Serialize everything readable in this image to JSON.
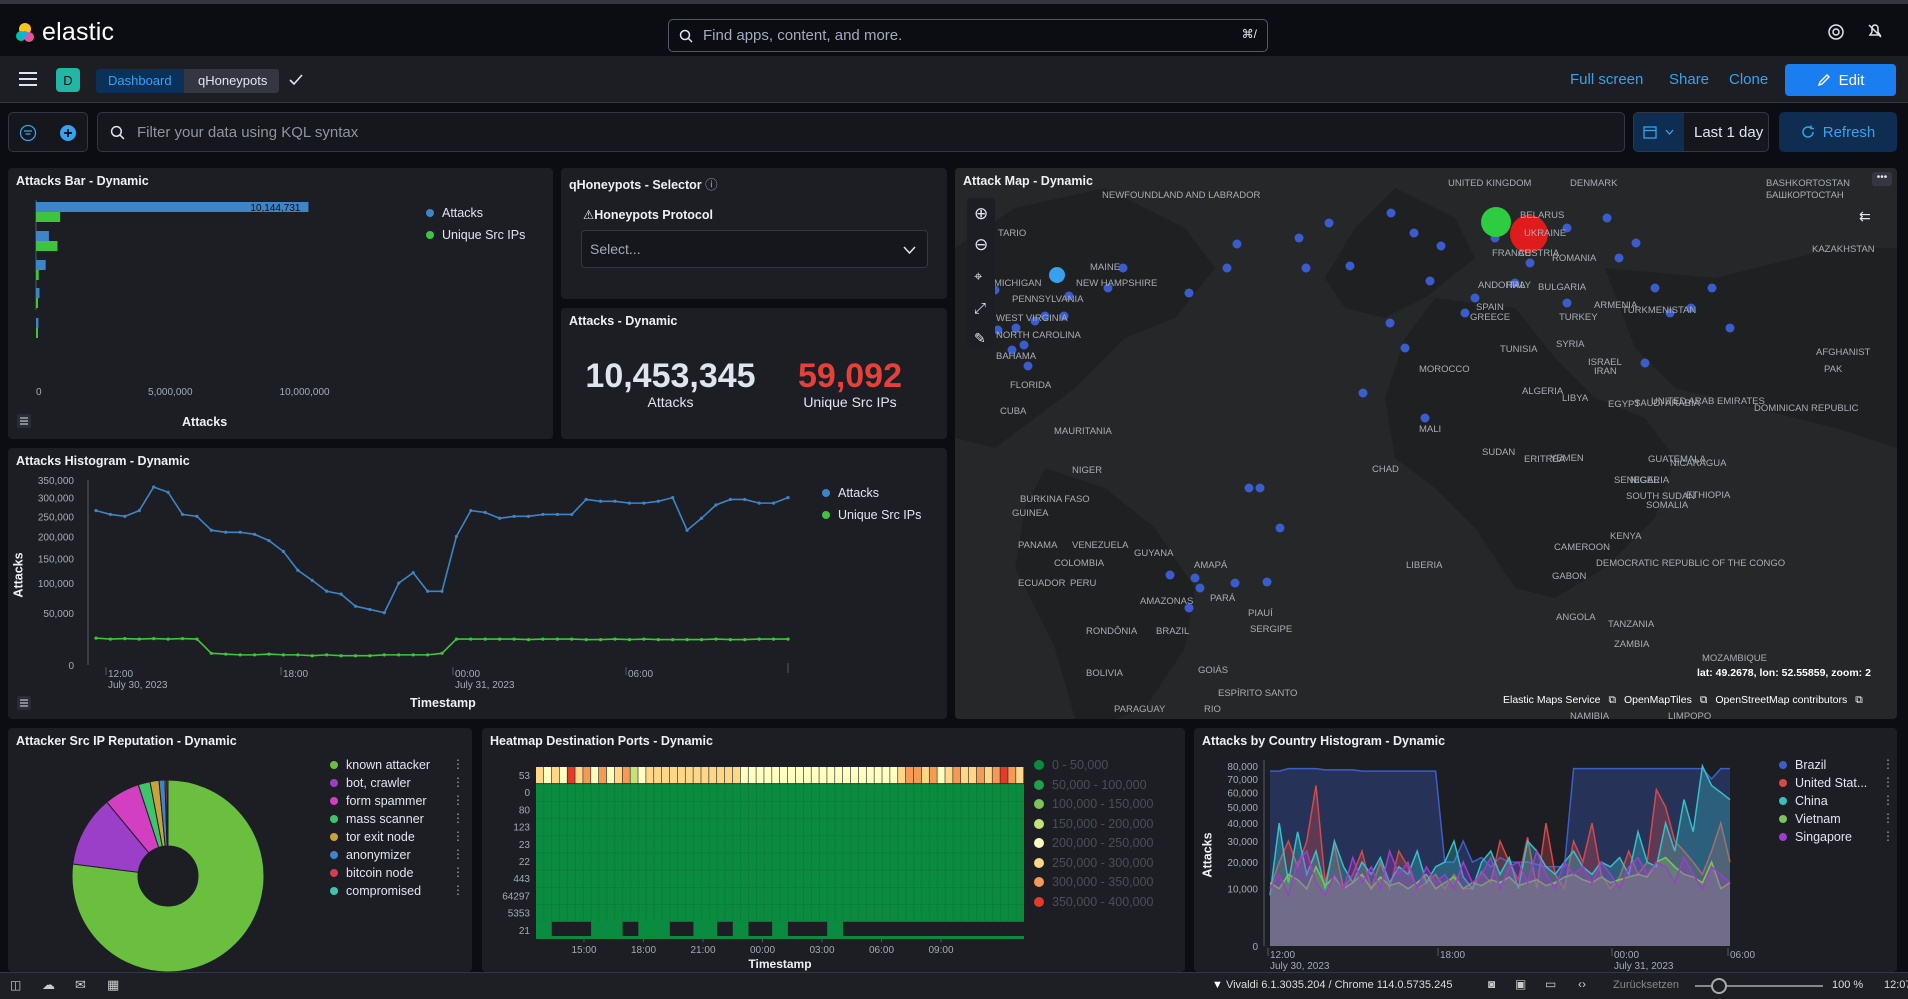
{
  "header": {
    "logo_text": "elastic",
    "search_placeholder": "Find apps, content, and more.",
    "search_shortcut": "⌘/"
  },
  "nav": {
    "space_initial": "D",
    "crumbs": [
      "Dashboard",
      "qHoneypots"
    ],
    "links": {
      "fullscreen": "Full screen",
      "share": "Share",
      "clone": "Clone",
      "edit": "Edit"
    }
  },
  "query": {
    "placeholder": "Filter your data using KQL syntax",
    "date_label": "Last 1 day",
    "refresh_label": "Refresh"
  },
  "panels": {
    "attacks_bar": {
      "title": "Attacks Bar - Dynamic",
      "xlabel": "Attacks",
      "bar_label": "10,144,731",
      "ticks": [
        "0",
        "5,000,000",
        "10,000,000"
      ],
      "legend": [
        "Attacks",
        "Unique Src IPs"
      ]
    },
    "selector": {
      "title": "qHoneypots - Selector",
      "label": "Honeypots Protocol",
      "placeholder": "Select..."
    },
    "metric": {
      "title": "Attacks - Dynamic",
      "attacks_value": "10,453,345",
      "attacks_label": "Attacks",
      "ips_value": "59,092",
      "ips_label": "Unique Src IPs"
    },
    "histogram": {
      "title": "Attacks Histogram - Dynamic",
      "ylabel": "Attacks",
      "xlabel": "Timestamp",
      "yticks": [
        "350,000",
        "300,000",
        "250,000",
        "200,000",
        "150,000",
        "100,000",
        "50,000",
        "0"
      ],
      "xticks": [
        "12:00",
        "18:00",
        "00:00",
        "06:00"
      ],
      "xdates": [
        "July 30, 2023",
        "July 31, 2023"
      ],
      "legend": [
        "Attacks",
        "Unique Src IPs"
      ]
    },
    "map": {
      "title": "Attack Map - Dynamic",
      "coords": "lat: 49.2678, lon: 52.55859, zoom: 2",
      "attribution": [
        "Elastic Maps Service",
        "OpenMapTiles",
        "OpenStreetMap contributors"
      ],
      "labels": [
        "UNITED KINGDOM",
        "DENMARK",
        "BELARUS",
        "BASHKORTOSTAN",
        "БАШКОРТОСТАН",
        "NEWFOUNDLAND AND LABRADOR",
        "UKRAINE",
        "KAZAKHSTAN",
        "FRANCE",
        "AUSTRIA",
        "ROMANIA",
        "TARIO",
        "MAINE",
        "NEW HAMPSHIRE",
        "MICHIGAN",
        "PENNSYLVANIA",
        "ANDORRA",
        "ITALY",
        "BULGARIA",
        "WEST VIRGINIA",
        "SPAIN",
        "GREECE",
        "TURKEY",
        "ARMENIA",
        "TURKMENISTAN",
        "NORTH CAROLINA",
        "TUNISIA",
        "SYRIA",
        "AFGHANIST",
        "ISRAEL",
        "IRAN",
        "MOROCCO",
        "BAHAMA",
        "FLORIDA",
        "ALGERIA",
        "LIBYA",
        "EGYPT",
        "SAUDI ARABIA",
        "UNITED ARAB EMIRATES",
        "PAK",
        "CUBA",
        "DOMINICAN REPUBLIC",
        "MAURITANIA",
        "NIGER",
        "MALI",
        "CHAD",
        "SUDAN",
        "ERITREA",
        "YEMEN",
        "GUATEMALA",
        "NICARAGUA",
        "SENEGAL",
        "BURKINA FASO",
        "GUINEA",
        "NIGERIA",
        "SOUTH SUDAN",
        "ETHIOPIA",
        "SOMALIA",
        "PANAMA",
        "VENEZUELA",
        "COLOMBIA",
        "GUYANA",
        "LIBERIA",
        "CAMEROON",
        "ECUADOR",
        "AMAPÁ",
        "KENYA",
        "DEMOCRATIC REPUBLIC OF THE CONGO",
        "GABON",
        "PERU",
        "AMAZONAS",
        "PARÁ",
        "PIAUÍ",
        "SERGIPE",
        "RONDÔNIA",
        "BRAZIL",
        "ANGOLA",
        "TANZANIA",
        "ZAMBIA",
        "BOLIVIA",
        "GOIÁS",
        "ESPÍRITO SANTO",
        "MOZAMBIQUE",
        "PARAGUAY",
        "RIO",
        "NAMIBIA",
        "LIMPOPO"
      ]
    },
    "reputation": {
      "title": "Attacker Src IP Reputation - Dynamic",
      "legend": [
        "known attacker",
        "bot, crawler",
        "form spammer",
        "mass scanner",
        "tor exit node",
        "anonymizer",
        "bitcoin node",
        "compromised"
      ]
    },
    "heatmap": {
      "title": "Heatmap Destination Ports - Dynamic",
      "rows": [
        "53",
        "0",
        "80",
        "123",
        "23",
        "22",
        "443",
        "64297",
        "5353",
        "21"
      ],
      "xticks": [
        "15:00",
        "18:00",
        "21:00",
        "00:00",
        "03:00",
        "06:00",
        "09:00"
      ],
      "xlabel": "Timestamp",
      "legend": [
        "0 - 50,000",
        "50,000 - 100,000",
        "100,000 - 150,000",
        "150,000 - 200,000",
        "200,000 - 250,000",
        "250,000 - 300,000",
        "300,000 - 350,000",
        "350,000 - 400,000"
      ]
    },
    "country": {
      "title": "Attacks by Country Histogram - Dynamic",
      "ylabel": "Attacks",
      "yticks": [
        "80,000",
        "70,000",
        "60,000",
        "50,000",
        "40,000",
        "30,000",
        "20,000",
        "10,000",
        "0"
      ],
      "xticks": [
        "12:00",
        "18:00",
        "00:00",
        "06:00"
      ],
      "xdates": [
        "July 30, 2023",
        "July 31, 2023"
      ],
      "legend": [
        "Brazil",
        "United Stat...",
        "China",
        "Vietnam",
        "Singapore"
      ]
    }
  },
  "statusbar": {
    "browser": "Vivaldi 6.1.3035.204 / Chrome 114.0.5735.245",
    "reset": "Zurücksetzen",
    "zoom": "100 %",
    "clock": "12:07"
  },
  "chart_data": [
    {
      "type": "bar",
      "title": "Attacks Bar - Dynamic",
      "xlabel": "Attacks",
      "series": [
        {
          "name": "Attacks",
          "values": [
            10144731,
            480000,
            360000,
            130000,
            90000
          ]
        },
        {
          "name": "Unique Src IPs",
          "values": [
            900000,
            800000,
            100000,
            30000,
            20000
          ]
        }
      ],
      "xlim": [
        0,
        10500000
      ]
    },
    {
      "type": "line",
      "title": "Attacks Histogram - Dynamic",
      "xlabel": "Timestamp",
      "ylabel": "Attacks",
      "ylim": [
        0,
        350000
      ],
      "series": [
        {
          "name": "Attacks",
          "values": [
            265000,
            255000,
            250000,
            265000,
            330000,
            315000,
            255000,
            250000,
            215000,
            210000,
            210000,
            205000,
            190000,
            165000,
            125000,
            105000,
            85000,
            80000,
            60000,
            55000,
            50000,
            100000,
            120000,
            85000,
            85000,
            200000,
            265000,
            260000,
            245000,
            250000,
            250000,
            255000,
            255000,
            255000,
            295000,
            290000,
            290000,
            285000,
            285000,
            290000,
            300000,
            215000,
            245000,
            280000,
            295000,
            295000,
            285000,
            285000,
            300000
          ]
        },
        {
          "name": "Unique Src IPs",
          "values": [
            18000,
            17000,
            17500,
            17000,
            17500,
            17000,
            17500,
            17000,
            5000,
            4500,
            4000,
            4000,
            4500,
            4000,
            4000,
            3500,
            4000,
            3500,
            3500,
            3500,
            4000,
            4000,
            4000,
            4000,
            5000,
            17000,
            17000,
            17000,
            17000,
            17000,
            16500,
            17000,
            17000,
            17000,
            16500,
            16500,
            17000,
            16500,
            17000,
            16500,
            16500,
            16500,
            16500,
            17000,
            16500,
            16500,
            17000,
            17000,
            17000
          ]
        }
      ]
    },
    {
      "type": "pie",
      "title": "Attacker Src IP Reputation - Dynamic",
      "categories": [
        "known attacker",
        "bot, crawler",
        "form spammer",
        "mass scanner",
        "tor exit node",
        "anonymizer",
        "bitcoin node",
        "compromised"
      ],
      "values": [
        77,
        12,
        6,
        2,
        1.5,
        1,
        0.3,
        0.2
      ]
    },
    {
      "type": "heatmap",
      "title": "Heatmap Destination Ports - Dynamic",
      "rows": [
        "53",
        "0",
        "80",
        "123",
        "23",
        "22",
        "443",
        "64297",
        "5353",
        "21"
      ],
      "top_row_levels": [
        5,
        4,
        5,
        4,
        7,
        5,
        6,
        4,
        6,
        4,
        5,
        6,
        3,
        4,
        5,
        5,
        5,
        5,
        5,
        5,
        5,
        5,
        5,
        5,
        5,
        5,
        4,
        4,
        4,
        4,
        4,
        4,
        4,
        4,
        4,
        4,
        4,
        4,
        4,
        4,
        4,
        4,
        4,
        4,
        4,
        4,
        5,
        6,
        6,
        5,
        6,
        4,
        5,
        6,
        5,
        5,
        6,
        5,
        6,
        7,
        6,
        5
      ]
    },
    {
      "type": "area",
      "title": "Attacks by Country Histogram - Dynamic",
      "ylabel": "Attacks",
      "ylim": [
        0,
        85000
      ],
      "series": [
        {
          "name": "Brazil",
          "values": [
            76000,
            76000,
            78000,
            78000,
            78000,
            78000,
            77000,
            77000,
            77000,
            77000,
            76000,
            76000,
            76000,
            76000,
            76000,
            76000,
            76000,
            76000,
            76000,
            20000,
            20000,
            30000,
            20000,
            22000,
            18000,
            22000,
            20000,
            20000,
            20000,
            19000,
            18000,
            18000,
            18000,
            78000,
            78000,
            78000,
            78000,
            78000,
            78000,
            78000,
            78000,
            78000,
            78000,
            78000,
            78000,
            78000,
            78000,
            78000,
            70000,
            78000,
            78000
          ]
        },
        {
          "name": "United States",
          "values": [
            10000,
            20000,
            30000,
            18000,
            30000,
            65000,
            12000,
            28000,
            10000,
            15000,
            25000,
            10000,
            20000,
            10000,
            25000,
            18000,
            10000,
            12000,
            15000,
            10000,
            15000,
            10000,
            10000,
            16000,
            12000,
            30000,
            20000,
            13000,
            32000,
            10000,
            40000,
            15000,
            10000,
            30000,
            20000,
            40000,
            15000,
            10000,
            14000,
            25000,
            15000,
            20000,
            62000,
            50000,
            30000,
            25000,
            20000,
            15000,
            25000,
            40000,
            20000
          ]
        },
        {
          "name": "China",
          "values": [
            8000,
            40000,
            12000,
            35000,
            15000,
            25000,
            10000,
            30000,
            18000,
            12000,
            20000,
            15000,
            22000,
            12000,
            18000,
            15000,
            25000,
            12000,
            18000,
            20000,
            30000,
            14000,
            10000,
            20000,
            25000,
            15000,
            22000,
            10000,
            30000,
            25000,
            18000,
            15000,
            20000,
            25000,
            18000,
            15000,
            20000,
            18000,
            22000,
            15000,
            35000,
            20000,
            18000,
            40000,
            25000,
            55000,
            35000,
            80000,
            65000,
            60000,
            55000
          ]
        },
        {
          "name": "Vietnam",
          "values": [
            12000,
            10000,
            15000,
            13000,
            10000,
            18000,
            11000,
            14000,
            10000,
            12000,
            15000,
            10000,
            14000,
            11000,
            12000,
            10000,
            12000,
            15000,
            10000,
            12000,
            14000,
            10000,
            12000,
            11000,
            13000,
            12000,
            14000,
            11000,
            12000,
            13000,
            11000,
            12000,
            14000,
            15000,
            13000,
            12000,
            14000,
            12000,
            13000,
            14000,
            15000,
            14000,
            20000,
            22000,
            18000,
            15000,
            14000,
            12000,
            20000,
            10000,
            12000
          ]
        },
        {
          "name": "Singapore",
          "values": [
            10000,
            15000,
            8000,
            20000,
            25000,
            12000,
            8000,
            15000,
            10000,
            22000,
            12000,
            18000,
            10000,
            25000,
            15000,
            20000,
            10000,
            18000,
            12000,
            15000,
            10000,
            20000,
            12000,
            15000,
            22000,
            10000,
            18000,
            20000,
            12000,
            25000,
            15000,
            10000,
            20000,
            15000,
            18000,
            12000,
            20000,
            15000,
            10000,
            18000,
            22000,
            15000,
            20000,
            18000,
            12000,
            22000,
            15000,
            10000,
            18000,
            15000,
            12000
          ]
        }
      ]
    }
  ]
}
